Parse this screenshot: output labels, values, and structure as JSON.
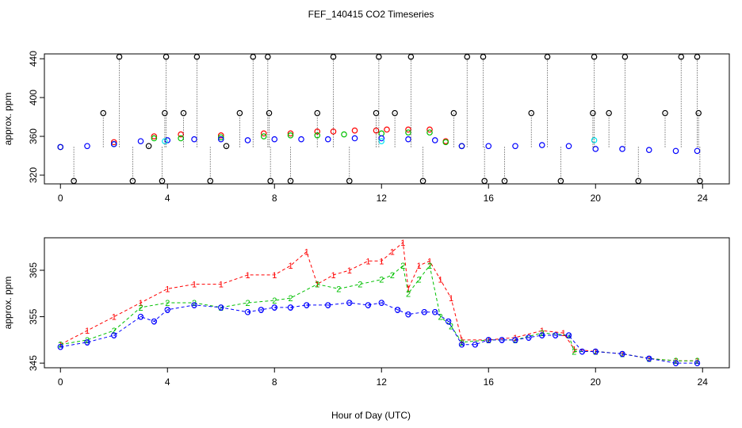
{
  "figure_title": "FEF_140415  CO2 Timeseries",
  "x_label": "Hour of Day (UTC)",
  "colors": {
    "station_1": "#ff0000",
    "station_2": "#00c000",
    "station_3": "#0000ff",
    "cyan": "#00e5ee",
    "raw": "#000000"
  },
  "chart_data": [
    {
      "type": "scatter",
      "title": "FEF_140415  CO2 Timeseries",
      "xlabel": "",
      "ylabel": "approx. ppm",
      "xlim": [
        -0.6,
        25.0
      ],
      "ylim": [
        311,
        445
      ],
      "xticks": [
        0,
        4,
        8,
        12,
        16,
        20,
        24
      ],
      "yticks": [
        320,
        360,
        400,
        440
      ],
      "series": [
        {
          "name": "1",
          "color": "#ff0000",
          "marker": "circle",
          "x": [
            0.0,
            2.0,
            3.5,
            4.5,
            6.0,
            7.6,
            8.6,
            9.6,
            10.2,
            11.0,
            11.8,
            12.2,
            13.0,
            13.8,
            14.4,
            15.0
          ],
          "y": [
            349,
            354,
            360,
            362,
            361,
            363,
            363,
            365,
            365,
            366,
            366,
            367,
            367,
            367,
            355,
            350
          ]
        },
        {
          "name": "2",
          "color": "#00c000",
          "marker": "circle",
          "x": [
            0.0,
            2.0,
            3.5,
            4.5,
            6.0,
            7.6,
            8.6,
            9.6,
            10.6,
            12.0,
            13.0,
            13.8,
            14.4,
            15.0
          ],
          "y": [
            349,
            352,
            358,
            358,
            359,
            360,
            361,
            361,
            362,
            363,
            364,
            364,
            354,
            350
          ]
        },
        {
          "name": "3",
          "color": "#0000ff",
          "marker": "circle",
          "x": [
            0.0,
            1.0,
            2.0,
            3.0,
            4.0,
            5.0,
            6.0,
            7.0,
            8.0,
            9.0,
            10.0,
            11.0,
            12.0,
            13.0,
            14.0,
            15.0,
            16.0,
            17.0,
            18.0,
            19.0,
            20.0,
            21.0,
            22.0,
            23.0,
            23.8
          ],
          "y": [
            349,
            350,
            352,
            355,
            356,
            357,
            357,
            356,
            357,
            357,
            357,
            358,
            358,
            357,
            356,
            350,
            350,
            350,
            351,
            350,
            347,
            347,
            346,
            345,
            345
          ]
        },
        {
          "name": "cyan",
          "color": "#00e5ee",
          "marker": "circle",
          "x": [
            3.9,
            12.0,
            19.95
          ],
          "y": [
            355,
            355,
            356
          ]
        },
        {
          "name": "raw",
          "color": "#000000",
          "marker": "circle",
          "x": [
            0.5,
            1.6,
            2.2,
            2.7,
            3.3,
            3.8,
            3.9,
            3.95,
            4.6,
            5.1,
            5.6,
            6.2,
            6.7,
            7.2,
            7.75,
            7.8,
            7.85,
            8.6,
            9.6,
            10.2,
            10.8,
            11.8,
            11.9,
            12.5,
            13.1,
            13.55,
            14.7,
            15.2,
            15.8,
            15.85,
            16.6,
            17.6,
            18.2,
            18.7,
            19.9,
            19.95,
            20.5,
            21.1,
            21.6,
            22.6,
            23.2,
            23.8,
            23.85,
            23.9
          ],
          "y": [
            314,
            384,
            442,
            314,
            350,
            314,
            384,
            442,
            384,
            442,
            314,
            350,
            384,
            442,
            442,
            384,
            314,
            314,
            384,
            442,
            314,
            384,
            442,
            384,
            442,
            314,
            384,
            442,
            442,
            314,
            314,
            384,
            442,
            314,
            384,
            442,
            384,
            442,
            314,
            384,
            442,
            442,
            384,
            314
          ]
        }
      ]
    },
    {
      "type": "scatter",
      "title": "",
      "xlabel": "Hour of Day (UTC)",
      "ylabel": "approx. ppm",
      "xlim": [
        -0.6,
        25.0
      ],
      "ylim": [
        344.0,
        372.0
      ],
      "xticks": [
        0,
        4,
        8,
        12,
        16,
        20,
        24
      ],
      "yticks": [
        345,
        355,
        365
      ],
      "series": [
        {
          "name": "1",
          "color": "#ff0000",
          "marker": "label-1",
          "x": [
            0.0,
            1.0,
            2.0,
            3.0,
            4.0,
            5.0,
            6.0,
            7.0,
            8.0,
            8.6,
            9.2,
            9.6,
            10.2,
            10.8,
            11.5,
            12.0,
            12.4,
            12.8,
            13.0,
            13.4,
            13.8,
            14.2,
            14.6,
            15.0,
            16.0,
            17.0,
            18.0,
            18.8,
            19.2,
            20.0,
            21.0,
            22.0,
            23.0,
            23.8
          ],
          "y": [
            349.0,
            352.0,
            355.0,
            358.0,
            361.0,
            362.0,
            362.0,
            364.0,
            364.0,
            366.0,
            369.0,
            362.0,
            364.0,
            365.0,
            367.0,
            367.0,
            369.0,
            371.0,
            361.0,
            366.0,
            367.0,
            363.0,
            359.0,
            350.0,
            350.0,
            350.5,
            352.0,
            351.5,
            348.0,
            347.5,
            347.0,
            346.0,
            345.5,
            345.5
          ]
        },
        {
          "name": "2",
          "color": "#00c000",
          "marker": "label-2",
          "x": [
            0.0,
            1.0,
            2.0,
            3.0,
            4.0,
            5.0,
            6.0,
            7.0,
            8.0,
            8.6,
            9.6,
            10.4,
            11.2,
            12.0,
            12.4,
            12.8,
            13.0,
            13.4,
            13.8,
            14.2,
            14.6,
            15.0,
            16.0,
            17.0,
            18.0,
            19.0,
            19.2,
            20.0,
            21.0,
            22.0,
            23.0,
            23.8
          ],
          "y": [
            349.0,
            350.0,
            352.0,
            357.0,
            358.0,
            358.0,
            357.0,
            358.0,
            358.5,
            359.0,
            362.0,
            361.0,
            362.0,
            363.0,
            364.0,
            366.0,
            360.0,
            363.0,
            366.0,
            355.0,
            353.0,
            349.5,
            350.0,
            350.0,
            351.5,
            351.0,
            347.5,
            347.5,
            347.0,
            346.0,
            345.5,
            345.5
          ]
        },
        {
          "name": "3",
          "color": "#0000ff",
          "marker": "label-3-circle",
          "x": [
            0.0,
            1.0,
            2.0,
            3.0,
            3.5,
            4.0,
            5.0,
            6.0,
            7.0,
            7.5,
            8.0,
            8.6,
            9.2,
            10.0,
            10.8,
            11.5,
            12.0,
            12.6,
            13.0,
            13.6,
            14.0,
            14.5,
            15.0,
            15.5,
            16.0,
            16.5,
            17.0,
            17.5,
            18.0,
            18.5,
            19.0,
            19.5,
            20.0,
            21.0,
            22.0,
            23.0,
            23.8
          ],
          "y": [
            348.5,
            349.5,
            351.0,
            355.0,
            354.0,
            356.5,
            357.5,
            357.0,
            356.0,
            356.5,
            357.0,
            357.0,
            357.5,
            357.5,
            358.0,
            357.5,
            358.0,
            356.5,
            355.5,
            356.0,
            356.0,
            354.0,
            349.0,
            349.0,
            350.0,
            350.0,
            350.0,
            350.5,
            351.0,
            351.0,
            351.0,
            347.5,
            347.5,
            347.0,
            346.0,
            345.0,
            345.0
          ]
        }
      ]
    }
  ]
}
